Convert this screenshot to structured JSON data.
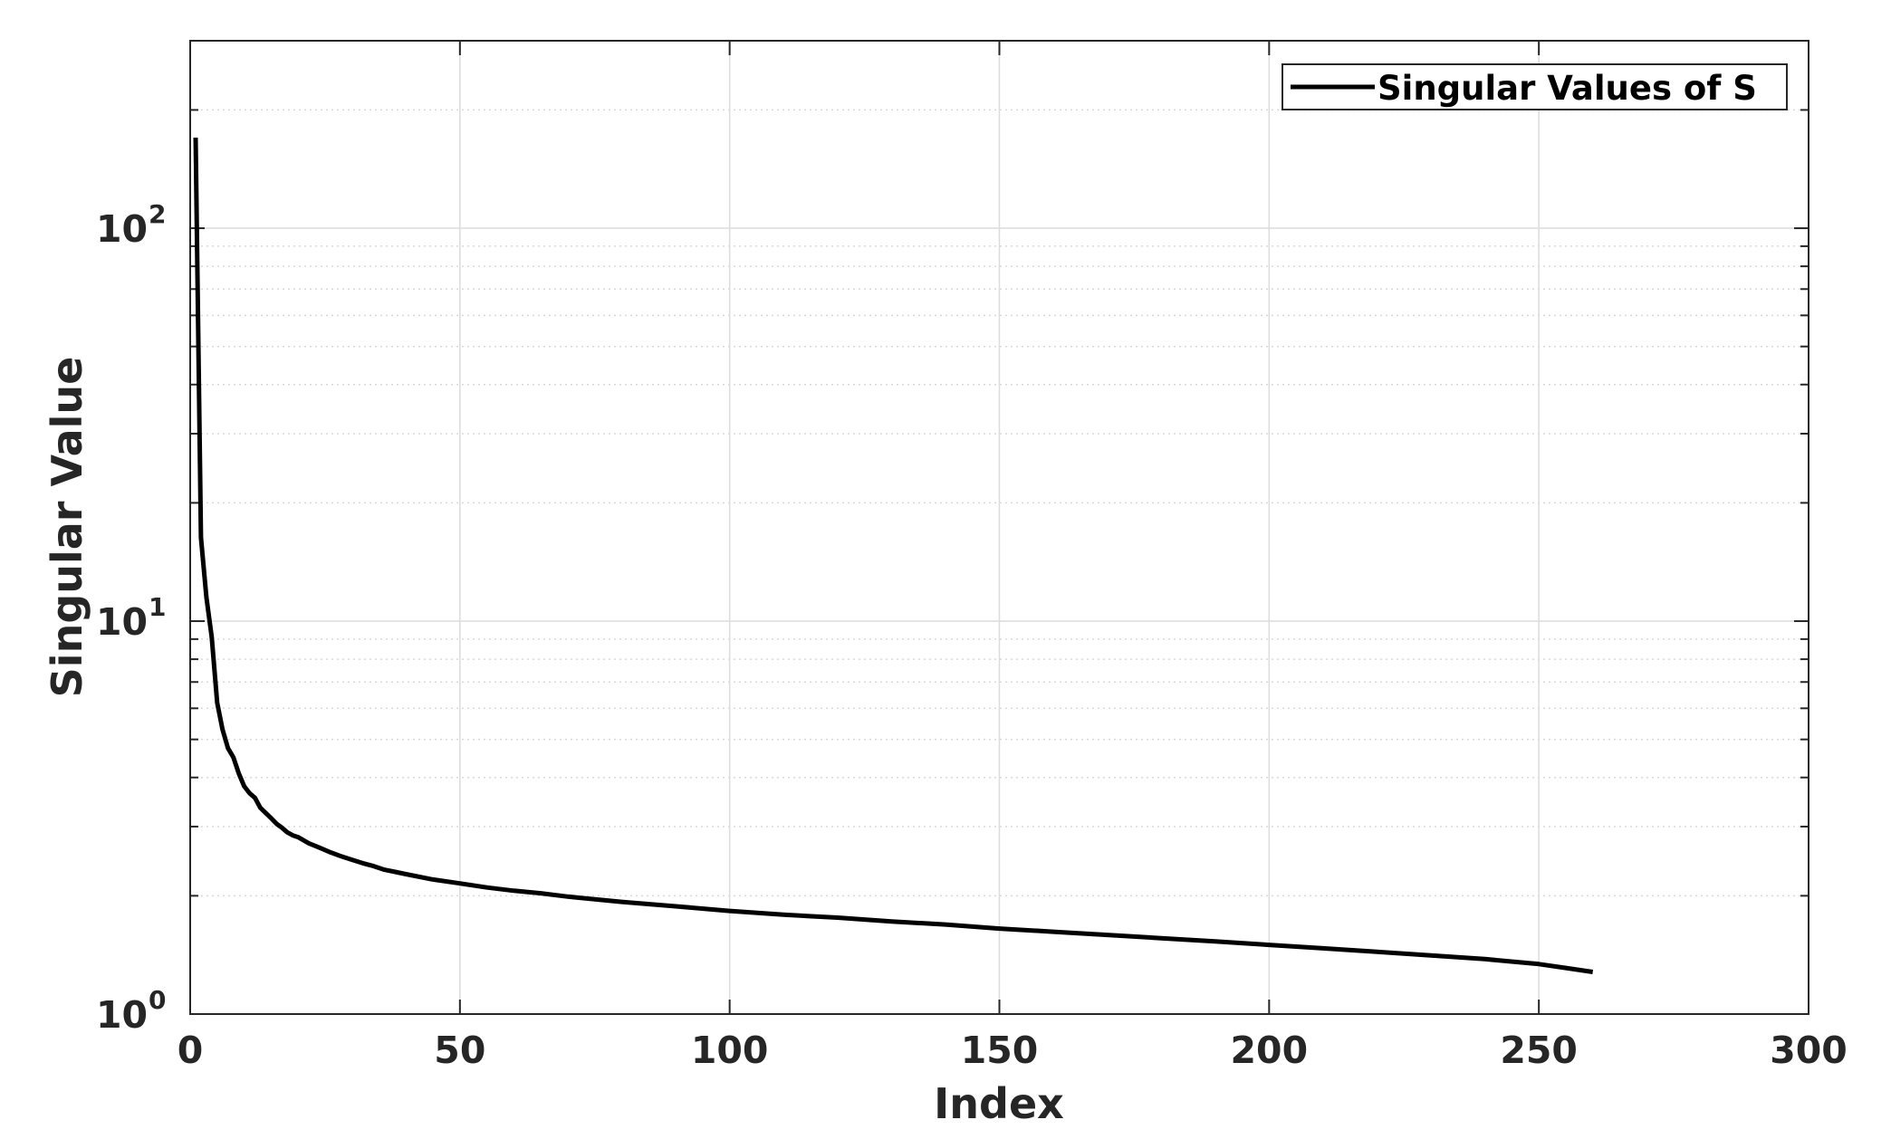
{
  "chart_data": {
    "type": "line",
    "title": "",
    "xlabel": "Index",
    "ylabel": "Singular Value",
    "xlim": [
      0,
      300
    ],
    "ylim": [
      1,
      300
    ],
    "yscale": "log",
    "grid": true,
    "minor_grid": true,
    "legend_position": "top-right",
    "x_ticks": [
      {
        "value": 0,
        "label": "0"
      },
      {
        "value": 50,
        "label": "50"
      },
      {
        "value": 100,
        "label": "100"
      },
      {
        "value": 150,
        "label": "150"
      },
      {
        "value": 200,
        "label": "200"
      },
      {
        "value": 250,
        "label": "250"
      },
      {
        "value": 300,
        "label": "300"
      }
    ],
    "y_ticks": [
      {
        "value": 1,
        "base": "10",
        "exp": "0"
      },
      {
        "value": 10,
        "base": "10",
        "exp": "1"
      },
      {
        "value": 100,
        "base": "10",
        "exp": "2"
      }
    ],
    "series": [
      {
        "name": "Singular Values of S",
        "color": "#000000",
        "x": [
          1,
          2,
          3,
          4,
          5,
          6,
          7,
          8,
          9,
          10,
          11,
          12,
          13,
          14,
          15,
          16,
          17,
          18,
          19,
          20,
          22,
          24,
          26,
          28,
          30,
          32,
          34,
          36,
          38,
          40,
          45,
          50,
          55,
          60,
          65,
          70,
          80,
          90,
          100,
          110,
          120,
          130,
          140,
          150,
          160,
          170,
          180,
          190,
          200,
          210,
          220,
          230,
          240,
          250,
          255,
          260
        ],
        "y": [
          170,
          16.3,
          11.5,
          9.1,
          6.2,
          5.3,
          4.75,
          4.5,
          4.1,
          3.8,
          3.65,
          3.55,
          3.35,
          3.25,
          3.15,
          3.05,
          2.98,
          2.9,
          2.85,
          2.82,
          2.72,
          2.65,
          2.58,
          2.52,
          2.47,
          2.42,
          2.38,
          2.33,
          2.3,
          2.27,
          2.2,
          2.15,
          2.1,
          2.06,
          2.03,
          1.99,
          1.93,
          1.88,
          1.83,
          1.79,
          1.76,
          1.72,
          1.69,
          1.65,
          1.62,
          1.59,
          1.56,
          1.53,
          1.5,
          1.47,
          1.44,
          1.41,
          1.38,
          1.34,
          1.31,
          1.28
        ]
      }
    ]
  }
}
